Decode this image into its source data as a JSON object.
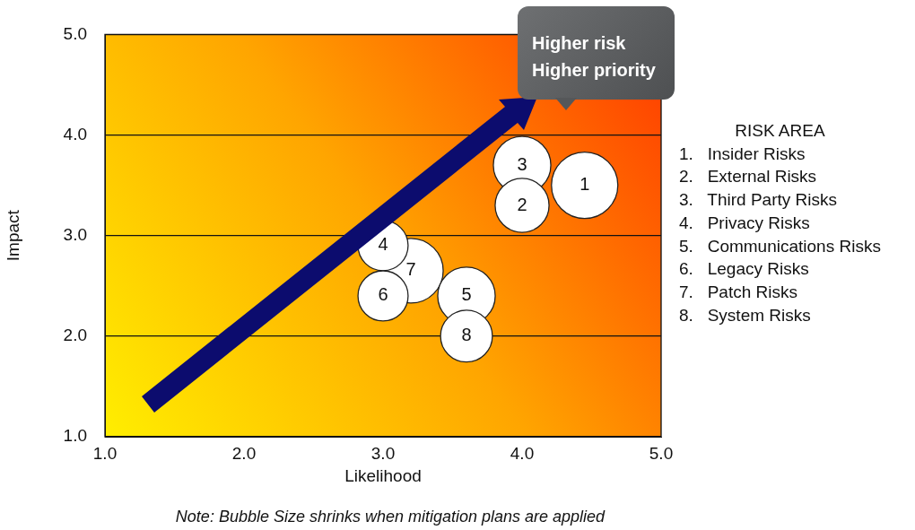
{
  "chart_data": {
    "type": "bubble",
    "xlabel": "Likelihood",
    "ylabel": "Impact",
    "xlim": [
      1,
      5
    ],
    "xticks": [
      {
        "value": 1,
        "label": "1.0"
      },
      {
        "value": 2,
        "label": "2.0"
      },
      {
        "value": 3,
        "label": "3.0"
      },
      {
        "value": 4,
        "label": "4.0"
      },
      {
        "value": 5,
        "label": "5.0"
      }
    ],
    "ylim": [
      1,
      5
    ],
    "yticks": [
      {
        "value": 1,
        "label": "1.0"
      },
      {
        "value": 2,
        "label": "2.0"
      },
      {
        "value": 3,
        "label": "3.0"
      },
      {
        "value": 4,
        "label": "4.0"
      },
      {
        "value": 5,
        "label": "5.0"
      }
    ],
    "grid": "y",
    "series": [
      {
        "color": "#ffffff",
        "x": [
          3.2,
          4.0,
          3.6,
          4.45,
          4.0,
          3.0,
          3.0,
          3.6
        ],
        "values": [
          2.65,
          3.7,
          2.4,
          3.5,
          3.3,
          2.9,
          2.4,
          2.0
        ],
        "sizes": [
          0.95,
          0.75,
          0.75,
          1,
          0.66,
          0.57,
          0.57,
          0.61
        ]
      }
    ],
    "annotations": [
      {
        "text": "1",
        "x": 4.45,
        "y": 3.5
      },
      {
        "text": "2",
        "x": 4.0,
        "y": 3.3
      },
      {
        "text": "3",
        "x": 4.0,
        "y": 3.7
      },
      {
        "text": "4",
        "x": 3.0,
        "y": 2.9
      },
      {
        "text": "5",
        "x": 3.6,
        "y": 2.4
      },
      {
        "text": "6",
        "x": 3.0,
        "y": 2.4
      },
      {
        "text": "7",
        "x": 3.2,
        "y": 2.65
      },
      {
        "text": "8",
        "x": 3.6,
        "y": 2.0
      },
      "Higher risk\nHigher priority",
      "RISK AREA",
      "1.   Insider Risks",
      "2.   External Risks",
      "3.   Third Party Risks",
      "4.   Privacy Risks",
      "5.   Communications Risks",
      "6.   Legacy Risks",
      "7.   Patch Risks",
      "8.   System Risks",
      "Note: Bubble Size shrinks when mitigation plans are applied"
    ]
  }
}
